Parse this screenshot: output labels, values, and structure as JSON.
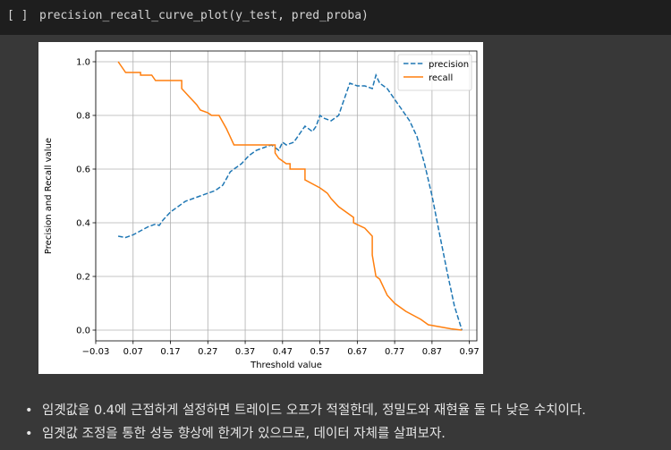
{
  "cell": {
    "run_indicator": "[ ]",
    "code": "precision_recall_curve_plot(y_test, pred_proba)"
  },
  "chart_data": {
    "type": "line",
    "title": "",
    "xlabel": "Threshold value",
    "ylabel": "Precision and Recall value",
    "xlim": [
      -0.03,
      0.99
    ],
    "ylim": [
      -0.04,
      1.04
    ],
    "xticks": [
      -0.03,
      0.07,
      0.17,
      0.27,
      0.37,
      0.47,
      0.57,
      0.67,
      0.77,
      0.87,
      0.97
    ],
    "xtick_labels": [
      "−0.03",
      "0.07",
      "0.17",
      "0.27",
      "0.37",
      "0.47",
      "0.57",
      "0.67",
      "0.77",
      "0.87",
      "0.97"
    ],
    "yticks": [
      0.0,
      0.2,
      0.4,
      0.6,
      0.8,
      1.0
    ],
    "ytick_labels": [
      "0.0",
      "0.2",
      "0.4",
      "0.6",
      "0.8",
      "1.0"
    ],
    "grid": true,
    "legend": "top-right",
    "series": [
      {
        "name": "precision",
        "color": "#1f77b4",
        "style": "dashed",
        "x": [
          0.03,
          0.05,
          0.07,
          0.09,
          0.11,
          0.13,
          0.14,
          0.15,
          0.17,
          0.19,
          0.21,
          0.23,
          0.25,
          0.27,
          0.29,
          0.3,
          0.31,
          0.33,
          0.34,
          0.36,
          0.38,
          0.4,
          0.42,
          0.44,
          0.45,
          0.46,
          0.47,
          0.48,
          0.5,
          0.52,
          0.53,
          0.55,
          0.56,
          0.57,
          0.58,
          0.6,
          0.62,
          0.63,
          0.64,
          0.65,
          0.67,
          0.69,
          0.71,
          0.72,
          0.73,
          0.75,
          0.77,
          0.79,
          0.81,
          0.83,
          0.85,
          0.87,
          0.89,
          0.91,
          0.93,
          0.95
        ],
        "y": [
          0.35,
          0.345,
          0.355,
          0.37,
          0.385,
          0.395,
          0.39,
          0.41,
          0.44,
          0.46,
          0.48,
          0.49,
          0.5,
          0.51,
          0.52,
          0.53,
          0.54,
          0.59,
          0.6,
          0.62,
          0.65,
          0.67,
          0.68,
          0.69,
          0.68,
          0.67,
          0.7,
          0.69,
          0.7,
          0.74,
          0.76,
          0.74,
          0.76,
          0.8,
          0.79,
          0.78,
          0.8,
          0.84,
          0.88,
          0.92,
          0.91,
          0.91,
          0.9,
          0.95,
          0.92,
          0.9,
          0.86,
          0.82,
          0.78,
          0.72,
          0.62,
          0.5,
          0.36,
          0.22,
          0.09,
          0.0
        ]
      },
      {
        "name": "recall",
        "color": "#ff7f0e",
        "style": "solid",
        "x": [
          0.03,
          0.05,
          0.09,
          0.09,
          0.12,
          0.13,
          0.2,
          0.2,
          0.22,
          0.24,
          0.25,
          0.27,
          0.28,
          0.29,
          0.3,
          0.32,
          0.34,
          0.34,
          0.35,
          0.45,
          0.45,
          0.46,
          0.48,
          0.49,
          0.49,
          0.53,
          0.53,
          0.57,
          0.58,
          0.59,
          0.6,
          0.62,
          0.63,
          0.65,
          0.66,
          0.66,
          0.69,
          0.71,
          0.71,
          0.72,
          0.73,
          0.75,
          0.77,
          0.8,
          0.84,
          0.86,
          0.88,
          0.92,
          0.95
        ],
        "y": [
          1.0,
          0.96,
          0.96,
          0.95,
          0.95,
          0.93,
          0.93,
          0.9,
          0.87,
          0.84,
          0.82,
          0.81,
          0.8,
          0.8,
          0.8,
          0.75,
          0.69,
          0.69,
          0.69,
          0.69,
          0.66,
          0.64,
          0.62,
          0.62,
          0.6,
          0.6,
          0.56,
          0.53,
          0.52,
          0.51,
          0.49,
          0.46,
          0.45,
          0.43,
          0.42,
          0.4,
          0.38,
          0.35,
          0.28,
          0.2,
          0.19,
          0.13,
          0.1,
          0.07,
          0.04,
          0.02,
          0.015,
          0.005,
          0.0
        ]
      }
    ]
  },
  "notes": {
    "items": [
      "임곗값을 0.4에 근접하게 설정하면 트레이드 오프가 적절한데, 정밀도와 재현율 둘 다 낮은 수치이다.",
      "임곗값 조정을 통한 성능 향상에 한계가 있으므로, 데이터 자체를 살펴보자."
    ]
  }
}
